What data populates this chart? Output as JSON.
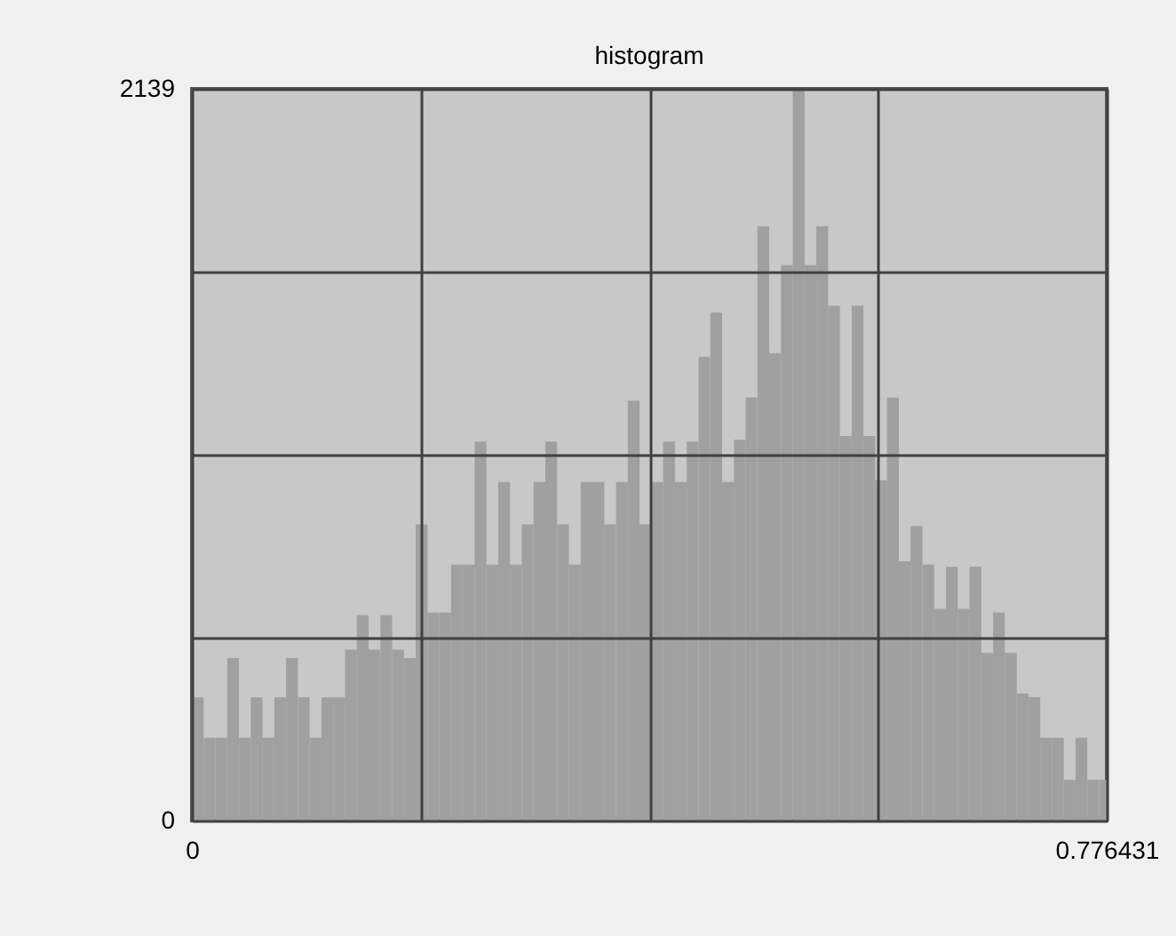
{
  "chart_data": {
    "type": "histogram",
    "title": "histogram",
    "color": "#a0a0a0",
    "grid": true,
    "bins": [
      0,
      0.01,
      0.02,
      0.03,
      0.04,
      0.05,
      0.06,
      0.07,
      0.08,
      0.09,
      0.1,
      0.11,
      0.12,
      0.13,
      0.14,
      0.15,
      0.16,
      0.17,
      0.18,
      0.19,
      0.2,
      0.21,
      0.22,
      0.23,
      0.24,
      0.25,
      0.26,
      0.27,
      0.28,
      0.29,
      0.3,
      0.31,
      0.32,
      0.33,
      0.34,
      0.35,
      0.36,
      0.37,
      0.38,
      0.39,
      0.4,
      0.41,
      0.42,
      0.43,
      0.44,
      0.45,
      0.46,
      0.47,
      0.48,
      0.49,
      0.5,
      0.51,
      0.52,
      0.53,
      0.54,
      0.55,
      0.56,
      0.57,
      0.58,
      0.59,
      0.6,
      0.61,
      0.62,
      0.63,
      0.64,
      0.65,
      0.66,
      0.67,
      0.68,
      0.69,
      0.7,
      0.71,
      0.72,
      0.73,
      0.74,
      0.75,
      0.76,
      0.77,
      0.776431
    ],
    "values": [
      360,
      242,
      242,
      475,
      242,
      360,
      242,
      360,
      475,
      360,
      242,
      360,
      360,
      500,
      600,
      500,
      600,
      500,
      475,
      866,
      608,
      608,
      748,
      748,
      1108,
      748,
      990,
      748,
      866,
      990,
      1108,
      866,
      748,
      990,
      990,
      866,
      990,
      1227,
      866,
      990,
      1108,
      990,
      1108,
      1356,
      1485,
      990,
      1113,
      1237,
      1737,
      1366,
      1624,
      2139,
      1624,
      1737,
      1505,
      1124,
      1505,
      1124,
      995,
      1236,
      758,
      861,
      748,
      619,
      742,
      619,
      742,
      490,
      608,
      490,
      371,
      361,
      242,
      242,
      119,
      242,
      119,
      119
    ],
    "xlim": [
      0,
      0.776431
    ],
    "xticks": [
      0,
      {
        "value": 0.194108,
        "label": null
      },
      {
        "value": 0.388216,
        "label": null
      },
      {
        "value": 0.582323,
        "label": null
      },
      0.776431
    ],
    "ylim": [
      0,
      2139
    ],
    "yticks": [
      0,
      {
        "value": 534.75,
        "label": null
      },
      {
        "value": 1069.5,
        "label": null
      },
      {
        "value": 1604.25,
        "label": null
      },
      2139
    ]
  }
}
